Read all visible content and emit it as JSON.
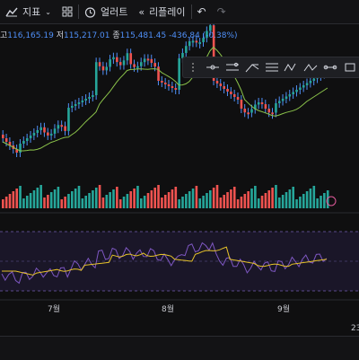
{
  "toolbar": {
    "indicators_label": "지표",
    "alerts_label": "얼러트",
    "replay_label": "리플레이"
  },
  "ohlc": {
    "high_label": "고",
    "high_value": "116,165.19",
    "low_label": "저",
    "low_value": "115,217.01",
    "close_label": "종",
    "close_value": "115,481.45",
    "change": "-436.84 (-0.38%)"
  },
  "time_axis": {
    "labels": [
      "7월",
      "8월",
      "9월"
    ],
    "edge_label": "23"
  },
  "colors": {
    "up": "#26a69a",
    "down": "#ef5350",
    "wick_blue": "#4f8ff7",
    "ma": "#8bc34a",
    "rsi": "#7e57c2",
    "rsi_ma": "#e6c229"
  },
  "icons": [
    "indicators-icon",
    "apps-grid-icon",
    "alarm-clock-icon",
    "replay-icon",
    "undo-icon",
    "redo-icon",
    "lightning-icon"
  ]
}
